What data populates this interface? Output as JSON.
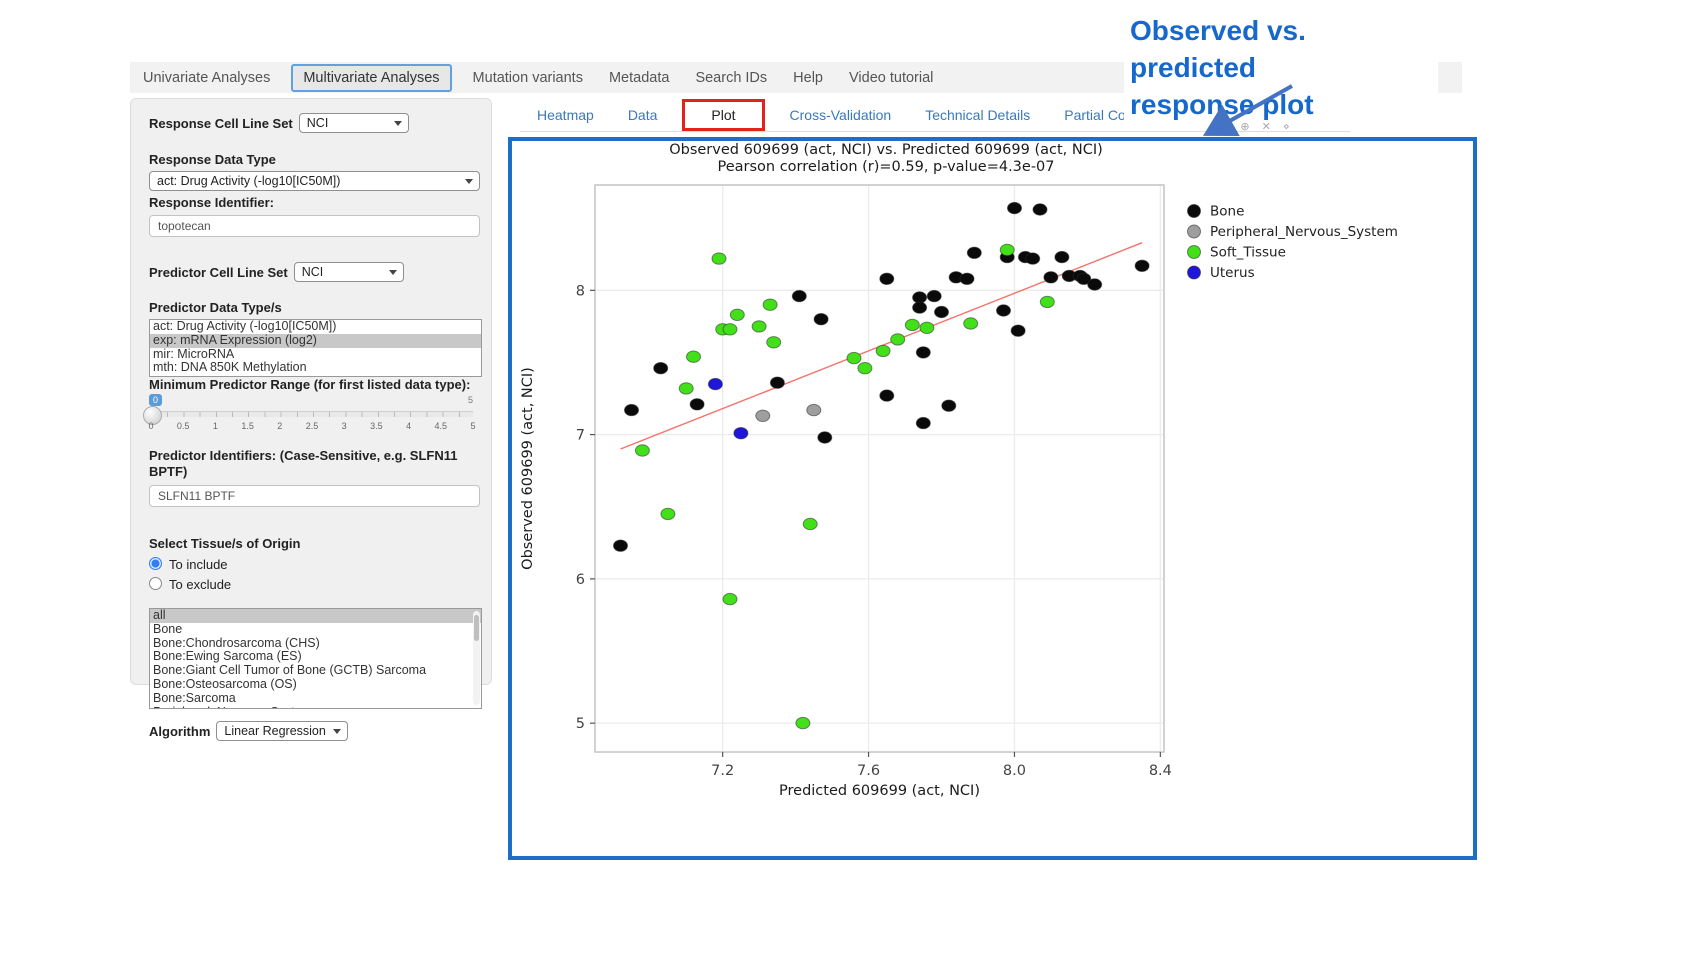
{
  "annotation": {
    "title_line1": "Observed  vs. predicted",
    "title_line2": "response plot",
    "color": "#1668cc"
  },
  "navbar": {
    "items": [
      {
        "label": "Univariate Analyses",
        "active": false
      },
      {
        "label": "Multivariate Analyses",
        "active": true
      },
      {
        "label": "Mutation variants",
        "active": false
      },
      {
        "label": "Metadata",
        "active": false
      },
      {
        "label": "Search IDs",
        "active": false
      },
      {
        "label": "Help",
        "active": false
      },
      {
        "label": "Video tutorial",
        "active": false
      }
    ]
  },
  "sidebar": {
    "response_cell_line_set": {
      "label": "Response Cell Line Set",
      "value": "NCI"
    },
    "response_data_type": {
      "label": "Response Data Type",
      "value": "act: Drug Activity (-log10[IC50M])"
    },
    "response_identifier": {
      "label": "Response Identifier:",
      "value": "topotecan"
    },
    "predictor_cell_line_set": {
      "label": "Predictor Cell Line Set",
      "value": "NCI"
    },
    "predictor_data_types": {
      "label": "Predictor Data Type/s",
      "options": [
        "act: Drug Activity (-log10[IC50M])",
        "exp: mRNA Expression (log2)",
        "mir: MicroRNA",
        "mth: DNA 850K Methylation"
      ],
      "selected": "exp: mRNA Expression (log2)"
    },
    "min_predictor_range": {
      "label": "Minimum Predictor Range (for first listed data type):",
      "value": "0",
      "max_label": "5",
      "tick_labels": [
        "0",
        "0.5",
        "1",
        "1.5",
        "2",
        "2.5",
        "3",
        "3.5",
        "4",
        "4.5",
        "5"
      ]
    },
    "predictor_identifiers": {
      "label": "Predictor Identifiers: (Case-Sensitive, e.g. SLFN11 BPTF)",
      "value": "SLFN11 BPTF"
    },
    "tissue_origin": {
      "label": "Select Tissue/s of Origin",
      "radios": [
        {
          "label": "To include",
          "selected": true
        },
        {
          "label": "To exclude",
          "selected": false
        }
      ],
      "options": [
        "all",
        "Bone",
        "Bone:Chondrosarcoma (CHS)",
        "Bone:Ewing Sarcoma (ES)",
        "Bone:Giant Cell Tumor of Bone (GCTB) Sarcoma",
        "Bone:Osteosarcoma (OS)",
        "Bone:Sarcoma",
        "Peripheral_Nervous_System"
      ],
      "selected": "all"
    },
    "algorithm": {
      "label": "Algorithm",
      "value": "Linear Regression"
    }
  },
  "main": {
    "tabs": [
      {
        "label": "Heatmap",
        "active": false,
        "highlighted": false
      },
      {
        "label": "Data",
        "active": false,
        "highlighted": false
      },
      {
        "label": "Plot",
        "active": true,
        "highlighted": true
      },
      {
        "label": "Cross-Validation",
        "active": false,
        "highlighted": false
      },
      {
        "label": "Technical Details",
        "active": false,
        "highlighted": false
      },
      {
        "label": "Partial Correlation",
        "active": false,
        "highlighted": false
      }
    ],
    "modebar_icons": [
      "camera-icon",
      "zoom-in-icon",
      "pan-icon",
      "close-icon"
    ]
  },
  "chart_data": {
    "type": "scatter",
    "title": "Observed 609699 (act, NCI) vs. Predicted 609699 (act, NCI)",
    "subtitle": "Pearson correlation (r)=0.59, p-value=4.3e-07",
    "xlabel": "Predicted 609699 (act, NCI)",
    "ylabel": "Observed 609699 (act, NCI)",
    "xlim": [
      6.85,
      8.41
    ],
    "ylim": [
      4.8,
      8.73
    ],
    "xticks": [
      "7.2",
      "7.6",
      "8.0",
      "8.4"
    ],
    "yticks": [
      "5",
      "6",
      "7",
      "8"
    ],
    "grid": true,
    "legend_position": "right",
    "series": [
      {
        "name": "Bone",
        "color": "#0a0a0a",
        "points": [
          [
            6.95,
            7.17
          ],
          [
            7.03,
            7.46
          ],
          [
            7.13,
            7.21
          ],
          [
            7.35,
            7.36
          ],
          [
            7.41,
            7.96
          ],
          [
            7.47,
            7.8
          ],
          [
            6.92,
            6.23
          ],
          [
            7.48,
            6.98
          ],
          [
            7.75,
            7.08
          ],
          [
            7.65,
            8.08
          ],
          [
            7.74,
            7.95
          ],
          [
            7.78,
            7.96
          ],
          [
            7.74,
            7.88
          ],
          [
            7.8,
            7.85
          ],
          [
            7.75,
            7.57
          ],
          [
            7.65,
            7.27
          ],
          [
            7.82,
            7.2
          ],
          [
            7.84,
            8.09
          ],
          [
            7.87,
            8.08
          ],
          [
            7.89,
            8.26
          ],
          [
            7.97,
            7.86
          ],
          [
            7.98,
            8.23
          ],
          [
            8.0,
            8.57
          ],
          [
            8.07,
            8.56
          ],
          [
            8.03,
            8.23
          ],
          [
            8.05,
            8.22
          ],
          [
            8.13,
            8.23
          ],
          [
            8.1,
            8.09
          ],
          [
            8.15,
            8.1
          ],
          [
            8.18,
            8.1
          ],
          [
            8.19,
            8.08
          ],
          [
            8.22,
            8.04
          ],
          [
            8.01,
            7.72
          ],
          [
            8.35,
            8.17
          ]
        ]
      },
      {
        "name": "Peripheral_Nervous_System",
        "color": "#9e9e9e",
        "points": [
          [
            7.31,
            7.13
          ],
          [
            7.45,
            7.17
          ]
        ]
      },
      {
        "name": "Soft_Tissue",
        "color": "#41e018",
        "points": [
          [
            7.19,
            8.22
          ],
          [
            7.33,
            7.9
          ],
          [
            7.24,
            7.83
          ],
          [
            7.2,
            7.73
          ],
          [
            7.22,
            7.73
          ],
          [
            7.3,
            7.75
          ],
          [
            7.34,
            7.64
          ],
          [
            7.12,
            7.54
          ],
          [
            7.1,
            7.32
          ],
          [
            6.98,
            6.89
          ],
          [
            7.05,
            6.45
          ],
          [
            7.44,
            6.38
          ],
          [
            7.22,
            5.86
          ],
          [
            7.42,
            5.0
          ],
          [
            7.56,
            7.53
          ],
          [
            7.59,
            7.46
          ],
          [
            7.64,
            7.58
          ],
          [
            7.68,
            7.66
          ],
          [
            7.72,
            7.76
          ],
          [
            7.76,
            7.74
          ],
          [
            7.88,
            7.77
          ],
          [
            7.98,
            8.28
          ],
          [
            8.09,
            7.92
          ]
        ]
      },
      {
        "name": "Uterus",
        "color": "#2016d9",
        "points": [
          [
            7.18,
            7.35
          ],
          [
            7.25,
            7.01
          ]
        ]
      }
    ],
    "trendline": {
      "color": "#f4736b",
      "x1": 6.92,
      "y1": 6.9,
      "x2": 8.35,
      "y2": 8.33
    }
  }
}
